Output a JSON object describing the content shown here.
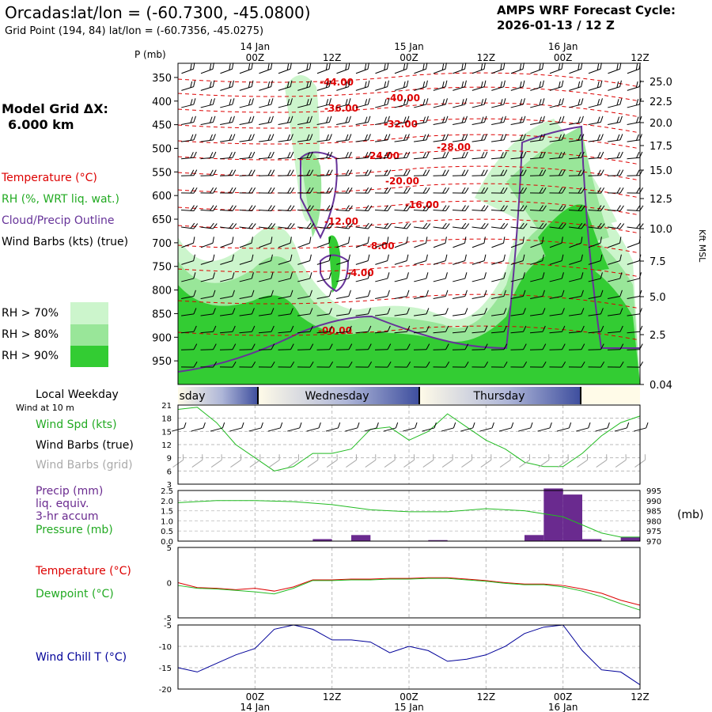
{
  "header": {
    "station": "Orcadas:",
    "latlon": "lat/lon = (-60.7300, -45.0800)",
    "grid_point": "Grid Point (194, 84) lat/lon = (-60.7356, -45.0275)",
    "cycle_line1": "AMPS WRF Forecast Cycle:",
    "cycle_line2": "2026-01-13 / 12  Z"
  },
  "left_labels": {
    "model_grid": "Model Grid ΔX:",
    "grid_km": "6.000 km",
    "temperature": "Temperature (°C)",
    "rh": "RH (%, WRT liq. wat.)",
    "cloud": "Cloud/Precip Outline",
    "wind": "Wind Barbs (kts) (true)",
    "rh70": "RH > 70%",
    "rh80": "RH > 80%",
    "rh90": "RH > 90%",
    "local_weekday": "Local Weekday",
    "wind10": "Wind at 10 m",
    "wind_spd": "Wind Spd (kts)",
    "wind_true": "Wind Barbs (true)",
    "wind_grid": "Wind Barbs (grid)",
    "precip": "Precip (mm)",
    "liq": "liq. equiv.",
    "accum": "3-hr accum",
    "pressure": "Pressure (mb)",
    "temp2": "Temperature (°C)",
    "dew": "Dewpoint (°C)",
    "windchill": "Wind Chill T (°C)",
    "pressure_unit": "(mb)"
  },
  "colors": {
    "temperature": "#dd0000",
    "rh": "#22bb22",
    "cloud": "#663399",
    "wind": "#000000",
    "wind_grid": "#aaaaaa",
    "rh70": "#ccf5cc",
    "rh80": "#99e699",
    "rh90": "#33cc33",
    "windchill": "#000099",
    "precip_bar": "#6a2a8f"
  },
  "time_axis": {
    "ticks": [
      {
        "hour": 12,
        "label": "00Z",
        "date": "14 Jan"
      },
      {
        "hour": 24,
        "label": "12Z",
        "date": ""
      },
      {
        "hour": 36,
        "label": "00Z",
        "date": "15 Jan"
      },
      {
        "hour": 48,
        "label": "12Z",
        "date": ""
      },
      {
        "hour": 60,
        "label": "00Z",
        "date": "16 Jan"
      },
      {
        "hour": 72,
        "label": "12Z",
        "date": ""
      }
    ],
    "p_label": "P (mb)"
  },
  "weekday": {
    "days": [
      "sday",
      "Wednesday",
      "Thursday"
    ]
  },
  "chart_data": [
    {
      "type": "heatmap",
      "panel": "cross-section",
      "y_pressure_ticks": [
        350,
        400,
        450,
        500,
        550,
        600,
        650,
        700,
        750,
        800,
        850,
        900,
        950
      ],
      "y_height_ticks": [
        "25.0",
        "22.5",
        "20.0",
        "17.5",
        "15.0",
        "12.5",
        "10.0",
        "7.5",
        "5.0",
        "2.5",
        "0.04"
      ],
      "y_height_label": "Kft MSL",
      "ylim": [
        1000,
        320
      ],
      "isotherm_labels": [
        "-44.00",
        "-40.00",
        "-36.00",
        "-32.00",
        "-28.00",
        "-24.00",
        "-20.00",
        "-16.00",
        "-12.00",
        "-8.00",
        "-4.00",
        "-00.00"
      ]
    },
    {
      "type": "line",
      "panel": "wind speed",
      "yticks": [
        3,
        6,
        9,
        12,
        15,
        18,
        21
      ],
      "ylim": [
        3,
        21
      ],
      "x": [
        0,
        3,
        6,
        9,
        12,
        15,
        18,
        21,
        24,
        27,
        30,
        33,
        36,
        39,
        42,
        45,
        48,
        51,
        54,
        57,
        60,
        63,
        66,
        69,
        72
      ],
      "values": [
        20,
        20.5,
        17,
        12,
        9,
        6,
        7,
        10,
        10,
        11,
        15.5,
        16,
        13,
        15,
        19,
        16,
        13,
        11,
        8,
        7,
        7,
        10,
        14,
        17,
        18.5
      ]
    },
    {
      "type": "bar",
      "panel": "precip and pressure",
      "yticks_precip": [
        "0.0",
        "0.5",
        "1.0",
        "1.5",
        "2.0",
        "2.5"
      ],
      "ylim_precip": [
        0,
        2.5
      ],
      "yticks_pressure": [
        "970",
        "975",
        "980",
        "985",
        "990",
        "995"
      ],
      "ylim_pressure": [
        970,
        995
      ],
      "precip_x": [
        6,
        12,
        18,
        24,
        30,
        36,
        42,
        48,
        54,
        57,
        60,
        63,
        66,
        69,
        72
      ],
      "precip_values": [
        0,
        0,
        0,
        0.1,
        0.3,
        0,
        0.05,
        0,
        0,
        0.3,
        2.6,
        2.3,
        0.1,
        0,
        0.2
      ],
      "pressure_x": [
        0,
        6,
        12,
        18,
        24,
        30,
        36,
        42,
        48,
        54,
        60,
        63,
        66,
        69,
        72
      ],
      "pressure_values": [
        989,
        990,
        990,
        989.5,
        988,
        985.5,
        984.5,
        984.5,
        986,
        985,
        982,
        978,
        974,
        972,
        972
      ]
    },
    {
      "type": "line",
      "panel": "temperature and dewpoint",
      "yticks": [
        "5",
        "0",
        "-5"
      ],
      "ylim": [
        -5,
        5
      ],
      "x": [
        0,
        3,
        6,
        9,
        12,
        15,
        18,
        21,
        24,
        27,
        30,
        33,
        36,
        39,
        42,
        45,
        48,
        51,
        54,
        57,
        60,
        63,
        66,
        69,
        72
      ],
      "series": [
        {
          "name": "Temperature",
          "values": [
            0,
            -0.7,
            -0.8,
            -1,
            -0.8,
            -1.2,
            -0.6,
            0.4,
            0.4,
            0.5,
            0.5,
            0.6,
            0.6,
            0.7,
            0.7,
            0.5,
            0.3,
            0,
            -0.2,
            -0.2,
            -0.4,
            -0.9,
            -1.5,
            -2.5,
            -3.2
          ]
        },
        {
          "name": "Dewpoint",
          "values": [
            -0.4,
            -0.8,
            -0.9,
            -1.1,
            -1.3,
            -1.6,
            -0.8,
            0.3,
            0.3,
            0.4,
            0.4,
            0.5,
            0.5,
            0.6,
            0.6,
            0.4,
            0.2,
            -0.1,
            -0.3,
            -0.3,
            -0.6,
            -1.2,
            -2.0,
            -3.0,
            -3.9
          ]
        }
      ]
    },
    {
      "type": "line",
      "panel": "wind chill",
      "yticks": [
        "-5",
        "-10",
        "-15",
        "-20"
      ],
      "ylim": [
        -20,
        -5
      ],
      "x": [
        0,
        3,
        6,
        9,
        12,
        15,
        18,
        21,
        24,
        27,
        30,
        33,
        36,
        39,
        42,
        45,
        48,
        51,
        54,
        57,
        60,
        63,
        66,
        69,
        72
      ],
      "values": [
        -15,
        -16,
        -14,
        -12,
        -10.5,
        -6,
        -5,
        -6,
        -8.5,
        -8.5,
        -9,
        -11.5,
        -10,
        -11,
        -13.5,
        -13,
        -12,
        -10,
        -7,
        -5.5,
        -5,
        -11,
        -15.5,
        -16,
        -19
      ]
    }
  ]
}
